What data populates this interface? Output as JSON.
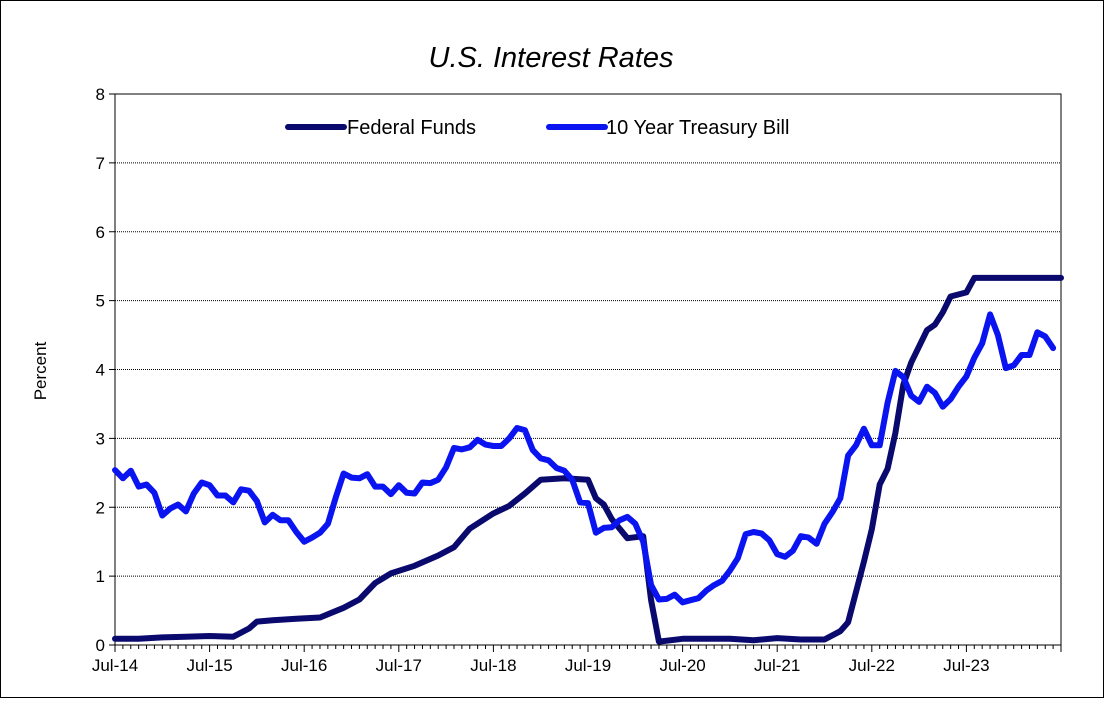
{
  "chart_data": {
    "type": "line",
    "title": "U.S. Interest Rates",
    "xlabel": "",
    "ylabel": "Percent",
    "ylim": [
      0,
      8
    ],
    "yticks": [
      "0",
      "1",
      "2",
      "3",
      "4",
      "5",
      "6",
      "7",
      "8"
    ],
    "xticks": [
      "Jul-14",
      "Jul-15",
      "Jul-16",
      "Jul-17",
      "Jul-18",
      "Jul-19",
      "Jul-20",
      "Jul-21",
      "Jul-22",
      "Jul-23"
    ],
    "xlim": [
      "2014-07",
      "2024-07"
    ],
    "grid": true,
    "legend_position": "top-center",
    "series": [
      {
        "name": "Federal Funds",
        "color": "#0a0a6e",
        "points": [
          [
            "2014-07",
            0.09
          ],
          [
            "2014-10",
            0.09
          ],
          [
            "2015-01",
            0.11
          ],
          [
            "2015-04",
            0.12
          ],
          [
            "2015-07",
            0.13
          ],
          [
            "2015-10",
            0.12
          ],
          [
            "2015-12",
            0.24
          ],
          [
            "2016-01",
            0.34
          ],
          [
            "2016-03",
            0.36
          ],
          [
            "2016-06",
            0.38
          ],
          [
            "2016-09",
            0.4
          ],
          [
            "2016-12",
            0.54
          ],
          [
            "2017-02",
            0.66
          ],
          [
            "2017-04",
            0.9
          ],
          [
            "2017-06",
            1.04
          ],
          [
            "2017-09",
            1.15
          ],
          [
            "2017-12",
            1.3
          ],
          [
            "2018-02",
            1.42
          ],
          [
            "2018-04",
            1.69
          ],
          [
            "2018-07",
            1.91
          ],
          [
            "2018-09",
            2.02
          ],
          [
            "2018-11",
            2.2
          ],
          [
            "2019-01",
            2.4
          ],
          [
            "2019-04",
            2.42
          ],
          [
            "2019-07",
            2.4
          ],
          [
            "2019-08",
            2.13
          ],
          [
            "2019-09",
            2.04
          ],
          [
            "2019-10",
            1.83
          ],
          [
            "2019-12",
            1.55
          ],
          [
            "2020-02",
            1.58
          ],
          [
            "2020-03",
            0.65
          ],
          [
            "2020-04",
            0.05
          ],
          [
            "2020-07",
            0.09
          ],
          [
            "2020-10",
            0.09
          ],
          [
            "2021-01",
            0.09
          ],
          [
            "2021-04",
            0.07
          ],
          [
            "2021-07",
            0.1
          ],
          [
            "2021-10",
            0.08
          ],
          [
            "2022-01",
            0.08
          ],
          [
            "2022-03",
            0.2
          ],
          [
            "2022-04",
            0.33
          ],
          [
            "2022-05",
            0.77
          ],
          [
            "2022-06",
            1.21
          ],
          [
            "2022-07",
            1.68
          ],
          [
            "2022-08",
            2.33
          ],
          [
            "2022-09",
            2.56
          ],
          [
            "2022-10",
            3.08
          ],
          [
            "2022-11",
            3.78
          ],
          [
            "2022-12",
            4.1
          ],
          [
            "2023-02",
            4.57
          ],
          [
            "2023-03",
            4.65
          ],
          [
            "2023-04",
            4.83
          ],
          [
            "2023-05",
            5.06
          ],
          [
            "2023-07",
            5.12
          ],
          [
            "2023-08",
            5.33
          ],
          [
            "2024-07",
            5.33
          ]
        ]
      },
      {
        "name": "10 Year Treasury Bill",
        "color": "#0a14f0",
        "points": [
          [
            "2014-07",
            2.54
          ],
          [
            "2014-08",
            2.42
          ],
          [
            "2014-09",
            2.53
          ],
          [
            "2014-10",
            2.3
          ],
          [
            "2014-11",
            2.33
          ],
          [
            "2014-12",
            2.21
          ],
          [
            "2015-01",
            1.88
          ],
          [
            "2015-02",
            1.98
          ],
          [
            "2015-03",
            2.04
          ],
          [
            "2015-04",
            1.94
          ],
          [
            "2015-05",
            2.2
          ],
          [
            "2015-06",
            2.36
          ],
          [
            "2015-07",
            2.32
          ],
          [
            "2015-08",
            2.17
          ],
          [
            "2015-09",
            2.17
          ],
          [
            "2015-10",
            2.07
          ],
          [
            "2015-11",
            2.26
          ],
          [
            "2015-12",
            2.24
          ],
          [
            "2016-01",
            2.09
          ],
          [
            "2016-02",
            1.78
          ],
          [
            "2016-03",
            1.89
          ],
          [
            "2016-04",
            1.81
          ],
          [
            "2016-05",
            1.81
          ],
          [
            "2016-06",
            1.64
          ],
          [
            "2016-07",
            1.5
          ],
          [
            "2016-08",
            1.56
          ],
          [
            "2016-09",
            1.63
          ],
          [
            "2016-10",
            1.76
          ],
          [
            "2016-11",
            2.14
          ],
          [
            "2016-12",
            2.49
          ],
          [
            "2017-01",
            2.43
          ],
          [
            "2017-02",
            2.42
          ],
          [
            "2017-03",
            2.48
          ],
          [
            "2017-04",
            2.3
          ],
          [
            "2017-05",
            2.3
          ],
          [
            "2017-06",
            2.19
          ],
          [
            "2017-07",
            2.32
          ],
          [
            "2017-08",
            2.21
          ],
          [
            "2017-09",
            2.2
          ],
          [
            "2017-10",
            2.36
          ],
          [
            "2017-11",
            2.35
          ],
          [
            "2017-12",
            2.4
          ],
          [
            "2018-01",
            2.58
          ],
          [
            "2018-02",
            2.86
          ],
          [
            "2018-03",
            2.84
          ],
          [
            "2018-04",
            2.87
          ],
          [
            "2018-05",
            2.98
          ],
          [
            "2018-06",
            2.91
          ],
          [
            "2018-07",
            2.89
          ],
          [
            "2018-08",
            2.89
          ],
          [
            "2018-09",
            3.0
          ],
          [
            "2018-10",
            3.15
          ],
          [
            "2018-11",
            3.12
          ],
          [
            "2018-12",
            2.83
          ],
          [
            "2019-01",
            2.71
          ],
          [
            "2019-02",
            2.68
          ],
          [
            "2019-03",
            2.57
          ],
          [
            "2019-04",
            2.53
          ],
          [
            "2019-05",
            2.4
          ],
          [
            "2019-06",
            2.07
          ],
          [
            "2019-07",
            2.06
          ],
          [
            "2019-08",
            1.63
          ],
          [
            "2019-09",
            1.7
          ],
          [
            "2019-10",
            1.71
          ],
          [
            "2019-11",
            1.81
          ],
          [
            "2019-12",
            1.86
          ],
          [
            "2020-01",
            1.76
          ],
          [
            "2020-02",
            1.5
          ],
          [
            "2020-03",
            0.87
          ],
          [
            "2020-04",
            0.66
          ],
          [
            "2020-05",
            0.67
          ],
          [
            "2020-06",
            0.73
          ],
          [
            "2020-07",
            0.62
          ],
          [
            "2020-08",
            0.65
          ],
          [
            "2020-09",
            0.68
          ],
          [
            "2020-10",
            0.79
          ],
          [
            "2020-11",
            0.87
          ],
          [
            "2020-12",
            0.93
          ],
          [
            "2021-01",
            1.08
          ],
          [
            "2021-02",
            1.26
          ],
          [
            "2021-03",
            1.61
          ],
          [
            "2021-04",
            1.64
          ],
          [
            "2021-05",
            1.62
          ],
          [
            "2021-06",
            1.52
          ],
          [
            "2021-07",
            1.32
          ],
          [
            "2021-08",
            1.28
          ],
          [
            "2021-09",
            1.37
          ],
          [
            "2021-10",
            1.58
          ],
          [
            "2021-11",
            1.56
          ],
          [
            "2021-12",
            1.47
          ],
          [
            "2022-01",
            1.76
          ],
          [
            "2022-02",
            1.93
          ],
          [
            "2022-03",
            2.13
          ],
          [
            "2022-04",
            2.75
          ],
          [
            "2022-05",
            2.9
          ],
          [
            "2022-06",
            3.14
          ],
          [
            "2022-07",
            2.9
          ],
          [
            "2022-08",
            2.9
          ],
          [
            "2022-09",
            3.52
          ],
          [
            "2022-10",
            3.98
          ],
          [
            "2022-11",
            3.89
          ],
          [
            "2022-12",
            3.62
          ],
          [
            "2023-01",
            3.53
          ],
          [
            "2023-02",
            3.75
          ],
          [
            "2023-03",
            3.66
          ],
          [
            "2023-04",
            3.46
          ],
          [
            "2023-05",
            3.57
          ],
          [
            "2023-06",
            3.75
          ],
          [
            "2023-07",
            3.9
          ],
          [
            "2023-08",
            4.17
          ],
          [
            "2023-09",
            4.38
          ],
          [
            "2023-10",
            4.8
          ],
          [
            "2023-11",
            4.5
          ],
          [
            "2023-12",
            4.02
          ],
          [
            "2024-01",
            4.06
          ],
          [
            "2024-02",
            4.21
          ],
          [
            "2024-03",
            4.21
          ],
          [
            "2024-04",
            4.54
          ],
          [
            "2024-05",
            4.48
          ],
          [
            "2024-06",
            4.31
          ]
        ]
      }
    ]
  }
}
